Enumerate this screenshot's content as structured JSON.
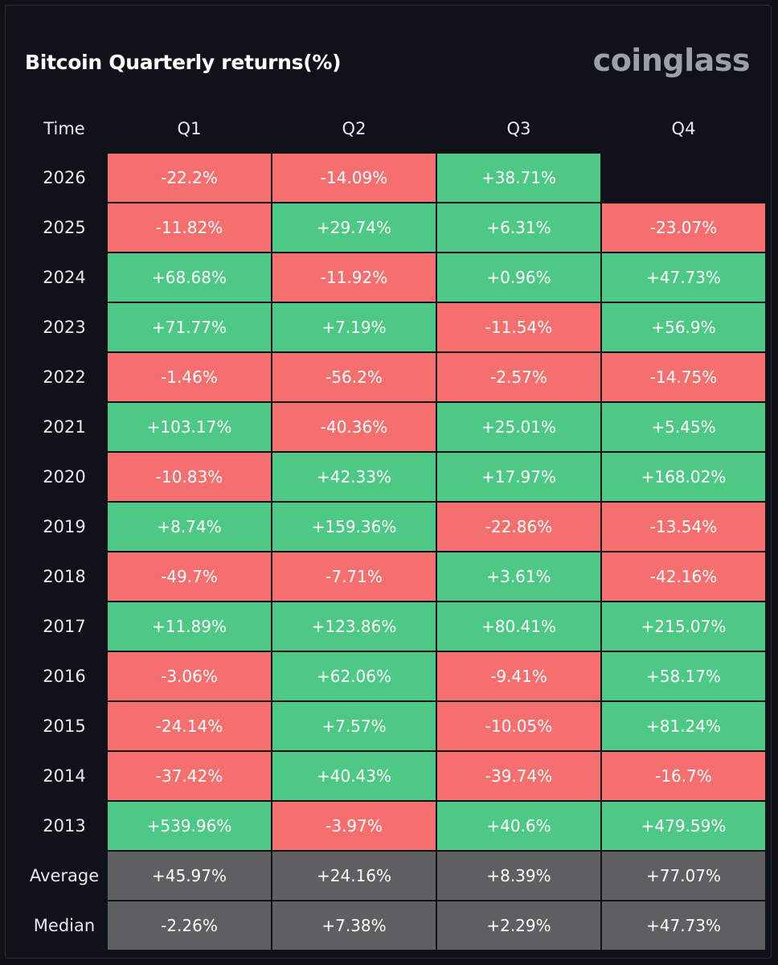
{
  "title": "Bitcoin Quarterly returns(%)",
  "logo": "coinglass",
  "watermark": "coinglass",
  "colors": {
    "positive": "#4ec985",
    "negative": "#f56f6f",
    "summary": "#5f5f61",
    "background": "#0f1218"
  },
  "chart_data": {
    "type": "table",
    "title": "Bitcoin Quarterly returns(%)",
    "columns": [
      "Time",
      "Q1",
      "Q2",
      "Q3",
      "Q4"
    ],
    "rows": [
      {
        "label": "2026",
        "values": [
          "-22.2%",
          "-14.09%",
          "+38.71%",
          ""
        ]
      },
      {
        "label": "2025",
        "values": [
          "-11.82%",
          "+29.74%",
          "+6.31%",
          "-23.07%"
        ]
      },
      {
        "label": "2024",
        "values": [
          "+68.68%",
          "-11.92%",
          "+0.96%",
          "+47.73%"
        ]
      },
      {
        "label": "2023",
        "values": [
          "+71.77%",
          "+7.19%",
          "-11.54%",
          "+56.9%"
        ]
      },
      {
        "label": "2022",
        "values": [
          "-1.46%",
          "-56.2%",
          "-2.57%",
          "-14.75%"
        ]
      },
      {
        "label": "2021",
        "values": [
          "+103.17%",
          "-40.36%",
          "+25.01%",
          "+5.45%"
        ]
      },
      {
        "label": "2020",
        "values": [
          "-10.83%",
          "+42.33%",
          "+17.97%",
          "+168.02%"
        ]
      },
      {
        "label": "2019",
        "values": [
          "+8.74%",
          "+159.36%",
          "-22.86%",
          "-13.54%"
        ]
      },
      {
        "label": "2018",
        "values": [
          "-49.7%",
          "-7.71%",
          "+3.61%",
          "-42.16%"
        ]
      },
      {
        "label": "2017",
        "values": [
          "+11.89%",
          "+123.86%",
          "+80.41%",
          "+215.07%"
        ]
      },
      {
        "label": "2016",
        "values": [
          "-3.06%",
          "+62.06%",
          "-9.41%",
          "+58.17%"
        ]
      },
      {
        "label": "2015",
        "values": [
          "-24.14%",
          "+7.57%",
          "-10.05%",
          "+81.24%"
        ]
      },
      {
        "label": "2014",
        "values": [
          "-37.42%",
          "+40.43%",
          "-39.74%",
          "-16.7%"
        ]
      },
      {
        "label": "2013",
        "values": [
          "+539.96%",
          "-3.97%",
          "+40.6%",
          "+479.59%"
        ]
      },
      {
        "label": "Average",
        "values": [
          "+45.97%",
          "+24.16%",
          "+8.39%",
          "+77.07%"
        ],
        "summary": true
      },
      {
        "label": "Median",
        "values": [
          "-2.26%",
          "+7.38%",
          "+2.29%",
          "+47.73%"
        ],
        "summary": true
      }
    ]
  }
}
